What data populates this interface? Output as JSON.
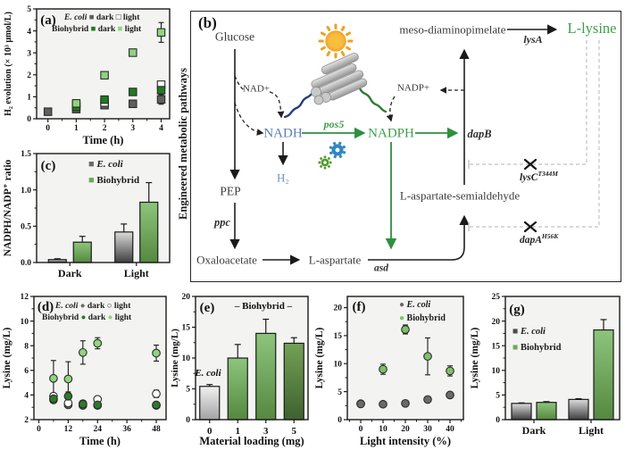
{
  "diagram": {
    "panel_label": "(b)",
    "side_label": "Engineered metabolic pathways",
    "nodes": {
      "glucose": "Glucose",
      "nad": "NAD+",
      "nadh": "NADH",
      "h2": "H₂",
      "pep": "PEP",
      "ppc": "ppc",
      "oxaloacetate": "Oxaloacetate",
      "l_aspartate": "L-aspartate",
      "asd": "asd",
      "pos5": "pos5",
      "nadph": "NADPH",
      "nadp": "NADP+",
      "l_aspartate_semialdehyde": "L-aspartate-semialdehyde",
      "dapb": "dapB",
      "meso_dap": "meso-diaminopimelate",
      "lysa": "lysA",
      "l_lysine": "L-lysine",
      "lysc": "lysC",
      "lysc_sup": "T344M",
      "dapa": "dapA",
      "dapa_sup": "H56K"
    },
    "colors": {
      "green_accent": "#3f9e4d",
      "nadh_blue": "#5b7fb4",
      "h2_blue": "#6f92c8",
      "feedback_gray": "#c2c2c2"
    }
  },
  "chart_data": [
    {
      "id": "a",
      "type": "scatter",
      "panel_label": "(a)",
      "xlabel": "Time (h)",
      "ylabel": "H₂ evolution (× 10³ μmol/L)",
      "xlim": [
        -0.4,
        4.3
      ],
      "ylim": [
        0,
        5
      ],
      "xticks": [
        0,
        1,
        2,
        3,
        4
      ],
      "yticks": [
        0,
        1,
        2,
        3,
        4,
        5
      ],
      "series": [
        {
          "name": "E. coli dark",
          "marker": "square",
          "fill": "#5f5f5f",
          "points": [
            [
              0,
              0.32,
              0
            ],
            [
              1,
              0.44,
              0
            ],
            [
              2,
              0.62,
              0.06
            ],
            [
              3,
              0.68,
              0.12
            ],
            [
              4,
              0.88,
              0.22
            ]
          ]
        },
        {
          "name": "E. coli light",
          "marker": "square",
          "fill": "#ffffff",
          "points": [
            [
              1,
              0.62,
              0
            ],
            [
              2,
              0.74,
              0
            ],
            [
              4,
              1.55,
              0
            ]
          ]
        },
        {
          "name": "Biohybrid dark",
          "marker": "square",
          "fill": "#1d7c1f",
          "points": [
            [
              1,
              0.54,
              0
            ],
            [
              2,
              0.87,
              0.07
            ],
            [
              3,
              1.22,
              0.08
            ],
            [
              4,
              1.3,
              0.1
            ]
          ]
        },
        {
          "name": "Biohybrid light",
          "marker": "square",
          "fill": "#8fd47f",
          "points": [
            [
              1,
              0.7,
              0.05
            ],
            [
              2,
              1.98,
              0.13
            ],
            [
              3,
              3.01,
              0.1
            ],
            [
              4,
              3.93,
              0.45
            ]
          ]
        }
      ],
      "legend": [
        [
          {
            "t": "E. coli ",
            "i": 1
          },
          {
            "t": "■",
            "c": "#5a5a5a"
          },
          {
            "t": " dark "
          },
          {
            "t": "□",
            "c": "#2b2b2b"
          },
          {
            "t": " light"
          }
        ],
        [
          {
            "t": "Biohybrid "
          },
          {
            "t": "■",
            "c": "#1d7c1f"
          },
          {
            "t": " dark "
          },
          {
            "t": "■",
            "c": "#8fd47f"
          },
          {
            "t": " light"
          }
        ]
      ]
    },
    {
      "id": "c",
      "type": "bar",
      "panel_label": "(c)",
      "ylabel": "NADPH/NADP⁺ ratio",
      "ylim": [
        0,
        1.5
      ],
      "yticks": [
        0,
        0.5,
        1,
        1.5
      ],
      "ytick_labels": [
        "0.0",
        "0.5",
        "1.0",
        "1.5"
      ],
      "categories": [
        "Dark",
        "Light"
      ],
      "series": [
        {
          "name": "E. coli",
          "fill": "grad-gray",
          "values": [
            0.04,
            0.42
          ],
          "errors": [
            0.012,
            0.11
          ]
        },
        {
          "name": "Biohybrid",
          "fill": "grad-green",
          "values": [
            0.28,
            0.83
          ],
          "errors": [
            0.08,
            0.27
          ]
        }
      ],
      "legend": [
        [
          {
            "t": "■ ",
            "c": "#6a6a6a"
          },
          {
            "t": "E. coli",
            "i": 1
          }
        ],
        [
          {
            "t": "■ ",
            "c": "#6faa5b"
          },
          {
            "t": "Biohybrid"
          }
        ]
      ]
    },
    {
      "id": "d",
      "type": "scatter",
      "panel_label": "(d)",
      "xlabel": "Time (h)",
      "ylabel": "Lysine (mg/L)",
      "xlim": [
        -2,
        52
      ],
      "ylim": [
        2,
        12
      ],
      "xticks": [
        0,
        12,
        24,
        36,
        48
      ],
      "yticks": [
        2,
        4,
        6,
        8,
        10,
        12
      ],
      "series": [
        {
          "name": "E. coli dark",
          "marker": "circle",
          "fill": "#6a6a6a",
          "points": [
            [
              6,
              3.6,
              0.2
            ],
            [
              12,
              3.2,
              0.12
            ],
            [
              18,
              3.15,
              0.1
            ],
            [
              24,
              3.15,
              0.1
            ],
            [
              48,
              3.15,
              0.12
            ]
          ]
        },
        {
          "name": "E. coli light",
          "marker": "circle",
          "fill": "#ffffff",
          "points": [
            [
              6,
              3.9,
              0.25
            ],
            [
              12,
              3.35,
              0.15
            ],
            [
              18,
              3.3,
              0.12
            ],
            [
              24,
              3.65,
              0.15
            ],
            [
              48,
              4.1,
              0.3
            ]
          ]
        },
        {
          "name": "Biohybrid dark",
          "marker": "circle",
          "fill": "#2c7a2c",
          "points": [
            [
              6,
              3.7,
              0.2
            ],
            [
              12,
              3.9,
              0.35
            ],
            [
              18,
              3.25,
              0.12
            ],
            [
              24,
              3.2,
              0.1
            ],
            [
              48,
              3.2,
              0.1
            ]
          ]
        },
        {
          "name": "Biohybrid light",
          "marker": "circle",
          "fill": "#8fd47f",
          "points": [
            [
              6,
              5.35,
              1.45
            ],
            [
              12,
              5.3,
              1.4
            ],
            [
              18,
              7.45,
              0.95
            ],
            [
              24,
              8.2,
              0.45
            ],
            [
              48,
              7.4,
              0.65
            ]
          ]
        }
      ],
      "legend": [
        [
          {
            "t": "E. coli ",
            "i": 1
          },
          {
            "t": "●",
            "c": "#6a6a6a"
          },
          {
            "t": " dark "
          },
          {
            "t": "○",
            "c": "#2b2b2b"
          },
          {
            "t": " light"
          }
        ],
        [
          {
            "t": "Biohybrid "
          },
          {
            "t": "●",
            "c": "#2c7a2c"
          },
          {
            "t": " dark "
          },
          {
            "t": "●",
            "c": "#8fd47f"
          },
          {
            "t": " light"
          }
        ]
      ]
    },
    {
      "id": "e",
      "type": "bar",
      "panel_label": "(e)",
      "xlabel": "Material loading (mg)",
      "ylabel": "Lysine (mg/L)",
      "ylim": [
        0,
        20
      ],
      "yticks": [
        0,
        5,
        10,
        15,
        20
      ],
      "categories": [
        "0",
        "1",
        "3",
        "5"
      ],
      "series": [
        {
          "name": "Lysine",
          "fills": [
            "grad-gray-light",
            "grad-green",
            "grad-green",
            "grad-green-dark"
          ],
          "values": [
            5.4,
            10.0,
            14.0,
            12.4
          ],
          "errors": [
            0.3,
            2.2,
            2.3,
            0.9
          ]
        }
      ],
      "annotations": [
        "E. coli",
        "– Biohybrid –"
      ]
    },
    {
      "id": "f",
      "type": "scatter",
      "panel_label": "(f)",
      "xlabel": "Light intensity (%)",
      "ylabel": "Lysine (mg/L)",
      "xlim": [
        -6,
        46
      ],
      "ylim": [
        0,
        22
      ],
      "xticks": [
        0,
        10,
        20,
        30,
        40
      ],
      "yticks": [
        0,
        5,
        10,
        15,
        20
      ],
      "series": [
        {
          "name": "Biohybrid",
          "marker": "circle",
          "fill": "#7cc268",
          "points": [
            [
              0,
              2.85,
              0
            ],
            [
              10,
              9.0,
              0.9
            ],
            [
              20,
              16.1,
              0.8
            ],
            [
              30,
              11.3,
              3.3
            ],
            [
              40,
              8.7,
              0.9
            ]
          ]
        },
        {
          "name": "E. coli",
          "marker": "circle",
          "fill": "#6a6a6a",
          "points": [
            [
              0,
              2.8,
              0
            ],
            [
              10,
              2.75,
              0
            ],
            [
              20,
              2.9,
              0
            ],
            [
              30,
              3.6,
              0
            ],
            [
              40,
              4.4,
              0
            ]
          ]
        }
      ],
      "legend": [
        [
          {
            "t": "● ",
            "c": "#6a6a6a"
          },
          {
            "t": "E. coli",
            "i": 1
          }
        ],
        [
          {
            "t": "● ",
            "c": "#7cc268"
          },
          {
            "t": "Biohybrid"
          }
        ]
      ]
    },
    {
      "id": "g",
      "type": "bar",
      "panel_label": "(g)",
      "ylabel": "Lysine (mg/L)",
      "ylim": [
        0,
        25
      ],
      "yticks": [
        0,
        5,
        10,
        15,
        20,
        25
      ],
      "categories": [
        "Dark",
        "Light"
      ],
      "series": [
        {
          "name": "E. coli",
          "fill": "grad-gray",
          "values": [
            3.3,
            4.1
          ],
          "errors": [
            0.1,
            0.15
          ]
        },
        {
          "name": "Biohybrid",
          "fill": "grad-green",
          "values": [
            3.5,
            18.2
          ],
          "errors": [
            0.15,
            2.1
          ]
        }
      ],
      "legend": [
        [
          {
            "t": "■ ",
            "c": "#4a4a4a"
          },
          {
            "t": "E. coli",
            "i": 1
          }
        ],
        [
          {
            "t": "■ ",
            "c": "#6faa5b"
          },
          {
            "t": "Biohybrid"
          }
        ]
      ]
    }
  ]
}
